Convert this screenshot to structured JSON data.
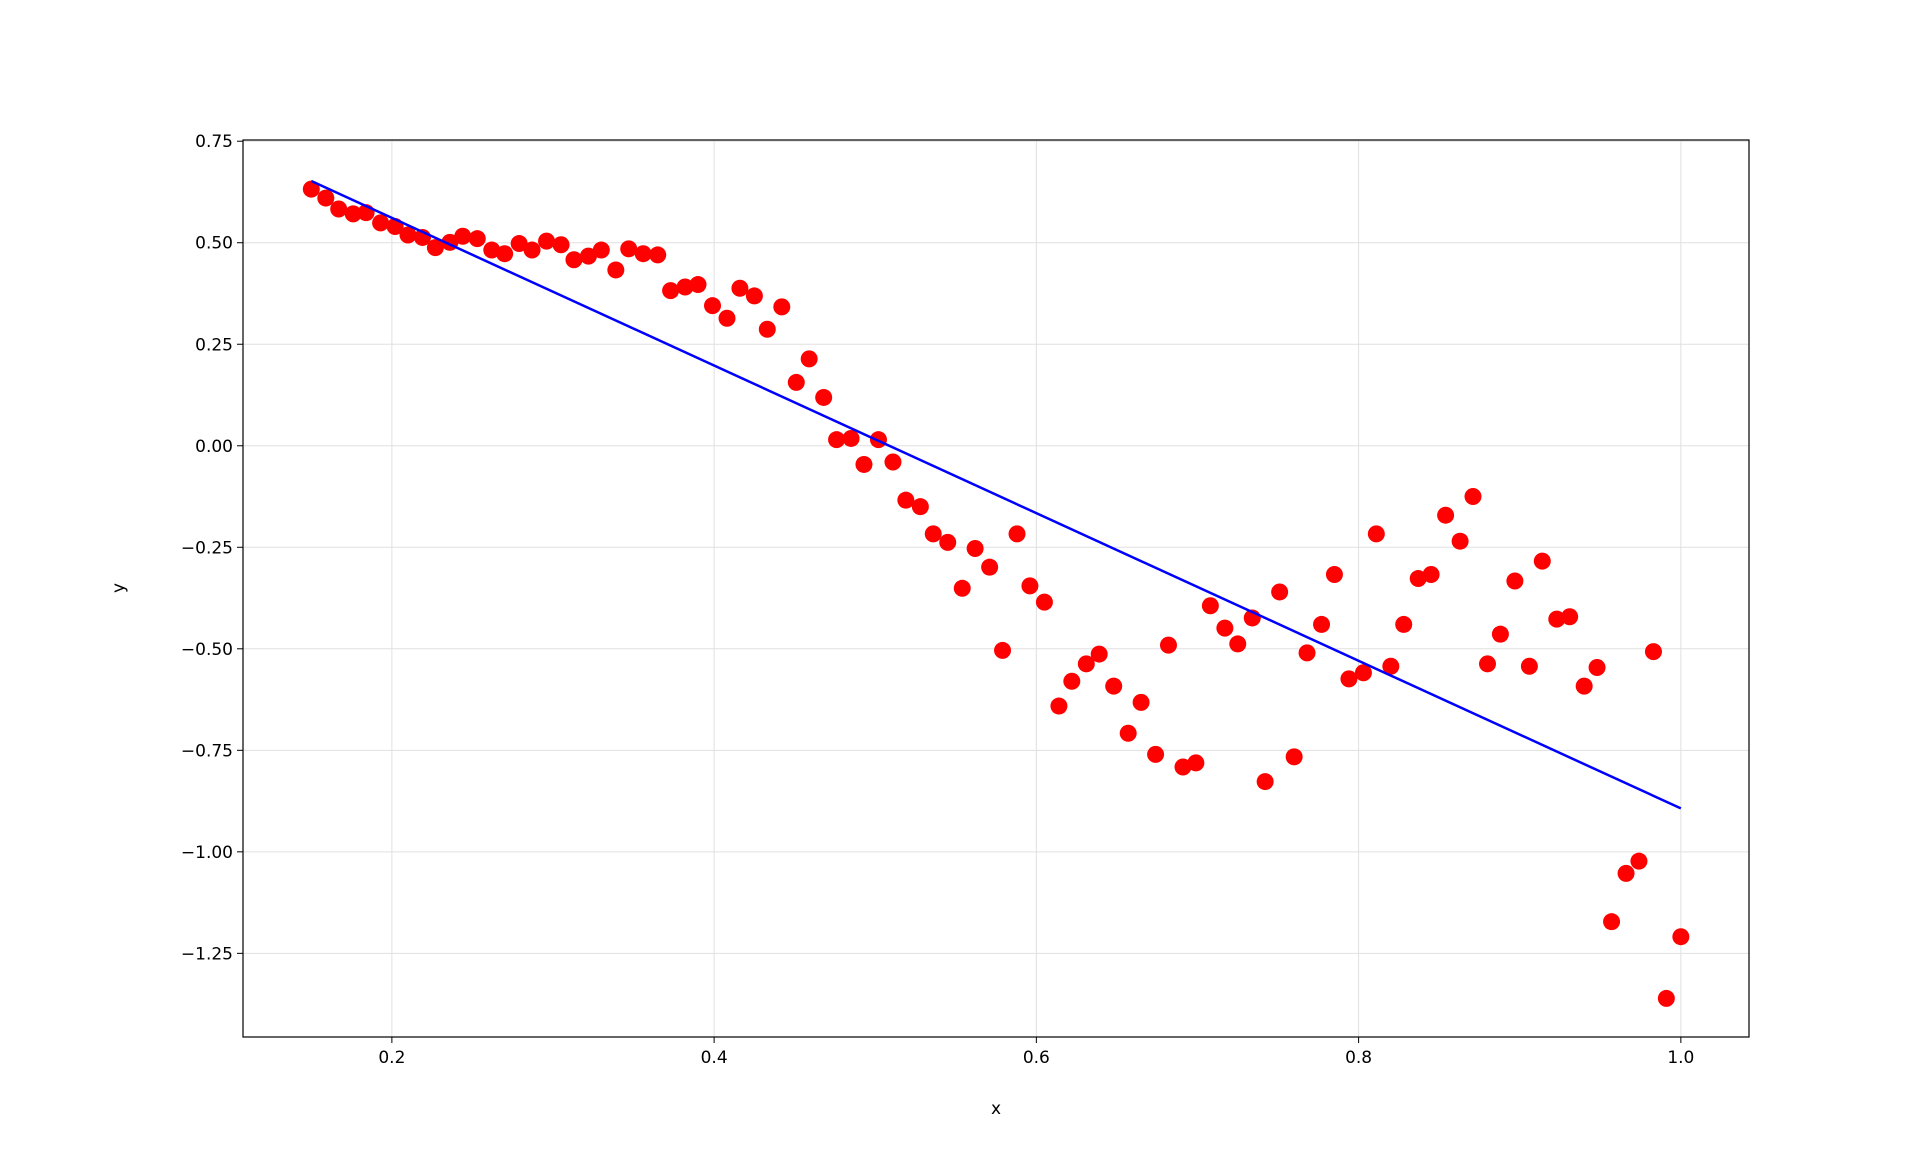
{
  "chart_data": {
    "type": "scatter",
    "xlabel": "x",
    "ylabel": "y",
    "xlim": [
      0.1076,
      1.0423
    ],
    "ylim": [
      -1.456,
      0.753
    ],
    "grid": true,
    "xticks": [
      0.2,
      0.4,
      0.6,
      0.8,
      {
        "value": 1,
        "label": "1.0"
      }
    ],
    "yticks": [
      0.75,
      {
        "value": 0.5,
        "label": "0.50"
      },
      0.25,
      {
        "value": 0,
        "label": "0.00"
      },
      {
        "value": -0.25,
        "label": "−0.25"
      },
      {
        "value": -0.5,
        "label": "−0.50"
      },
      {
        "value": -0.75,
        "label": "−0.75"
      },
      {
        "value": -1,
        "label": "−1.00"
      },
      {
        "value": -1.25,
        "label": "−1.25"
      }
    ],
    "series": [
      {
        "type": "scatter",
        "color": "#ff0000",
        "x": [
          0.15,
          0.159,
          0.167,
          0.176,
          0.184,
          0.193,
          0.202,
          0.21,
          0.219,
          0.227,
          0.236,
          0.244,
          0.253,
          0.262,
          0.27,
          0.279,
          0.287,
          0.296,
          0.305,
          0.313,
          0.322,
          0.33,
          0.339,
          0.347,
          0.356,
          0.365,
          0.373,
          0.382,
          0.39,
          0.399,
          0.408,
          0.416,
          0.425,
          0.433,
          0.442,
          0.451,
          0.459,
          0.468,
          0.476,
          0.485,
          0.493,
          0.502,
          0.511,
          0.519,
          0.528,
          0.536,
          0.545,
          0.554,
          0.562,
          0.571,
          0.579,
          0.588,
          0.596,
          0.605,
          0.614,
          0.622,
          0.631,
          0.639,
          0.648,
          0.657,
          0.665,
          0.674,
          0.682,
          0.691,
          0.699,
          0.708,
          0.717,
          0.725,
          0.734,
          0.742,
          0.751,
          0.76,
          0.768,
          0.777,
          0.785,
          0.794,
          0.803,
          0.811,
          0.82,
          0.828,
          0.837,
          0.845,
          0.854,
          0.863,
          0.871,
          0.88,
          0.888,
          0.897,
          0.906,
          0.914,
          0.923,
          0.931,
          0.94,
          0.948,
          0.957,
          0.966,
          0.974,
          0.983,
          0.991,
          1.0
        ],
        "values": [
          0.632,
          0.61,
          0.583,
          0.571,
          0.574,
          0.549,
          0.54,
          0.519,
          0.513,
          0.488,
          0.501,
          0.516,
          0.51,
          0.482,
          0.473,
          0.498,
          0.482,
          0.504,
          0.495,
          0.458,
          0.467,
          0.482,
          0.433,
          0.485,
          0.473,
          0.47,
          0.382,
          0.391,
          0.397,
          0.345,
          0.314,
          0.388,
          0.369,
          0.287,
          0.342,
          0.156,
          0.214,
          0.119,
          0.015,
          0.018,
          -0.046,
          0.015,
          -0.04,
          -0.134,
          -0.15,
          -0.217,
          -0.238,
          -0.351,
          -0.253,
          -0.299,
          -0.504,
          -0.217,
          -0.345,
          -0.385,
          -0.641,
          -0.58,
          -0.537,
          -0.513,
          -0.592,
          -0.708,
          -0.632,
          -0.76,
          -0.491,
          -0.791,
          -0.781,
          -0.394,
          -0.449,
          -0.488,
          -0.424,
          -0.827,
          -0.36,
          -0.766,
          -0.51,
          -0.44,
          -0.317,
          -0.574,
          -0.559,
          -0.217,
          -0.543,
          -0.44,
          -0.327,
          -0.317,
          -0.171,
          -0.235,
          -0.125,
          -0.537,
          -0.464,
          -0.333,
          -0.543,
          -0.284,
          -0.427,
          -0.421,
          -0.592,
          -0.546,
          -1.172,
          -1.053,
          -1.023,
          -0.507,
          -1.361,
          -1.209
        ]
      },
      {
        "type": "line",
        "color": "#0000ff",
        "x": [
          0.15,
          1.0
        ],
        "values": [
          0.652,
          -0.893
        ]
      }
    ]
  }
}
